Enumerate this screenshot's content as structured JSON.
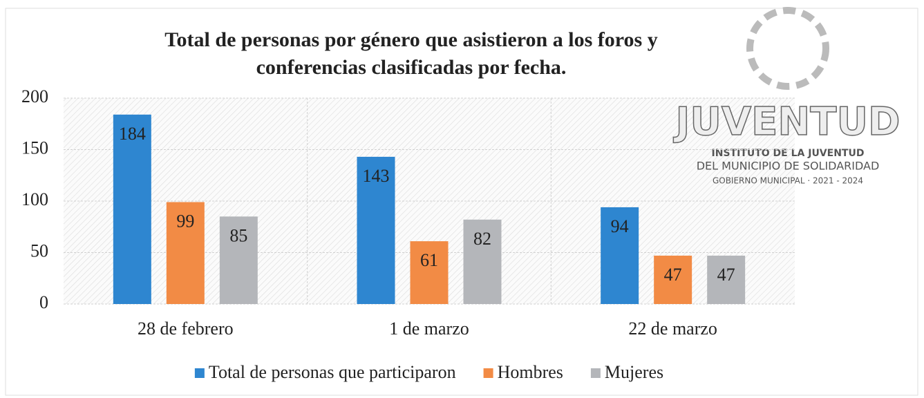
{
  "chart_data": {
    "type": "bar",
    "title": [
      "Total de personas por género que asistieron a los foros y",
      "conferencias clasificadas por fecha."
    ],
    "categories": [
      "28 de febrero",
      "1 de marzo",
      "22 de marzo"
    ],
    "series": [
      {
        "name": "Total de personas que participaron",
        "color": "#2e86d0",
        "values": [
          184,
          143,
          94
        ]
      },
      {
        "name": "Hombres",
        "color": "#f28b45",
        "values": [
          99,
          61,
          47
        ]
      },
      {
        "name": "Mujeres",
        "color": "#b4b6ba",
        "values": [
          85,
          82,
          47
        ]
      }
    ],
    "ylim": [
      0,
      200
    ],
    "yticks": [
      0,
      50,
      100,
      150,
      200
    ],
    "grid": true,
    "legend": "bottom",
    "logo": {
      "name": "JUVENTUD",
      "lines": [
        "INSTITUTO DE LA JUVENTUD",
        "DEL MUNICIPIO DE SOLIDARIDAD",
        "GOBIERNO MUNICIPAL · 2021 - 2024"
      ]
    }
  }
}
